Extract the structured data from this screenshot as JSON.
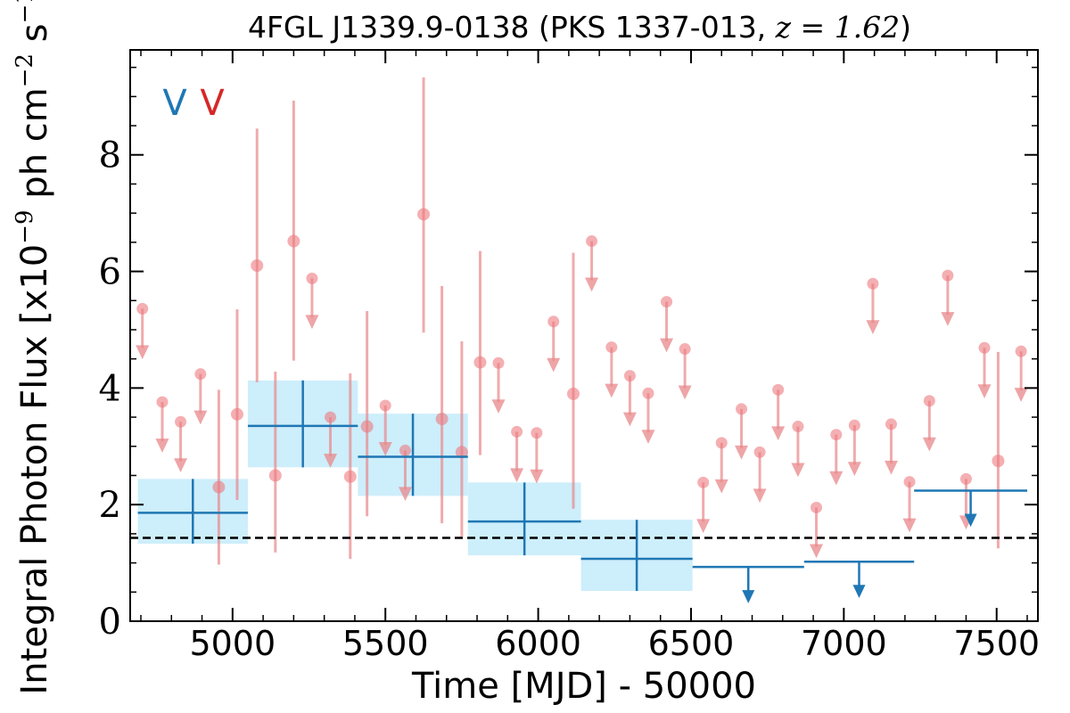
{
  "chart_data": {
    "type": "scatter",
    "title": {
      "text": "4FGL J1339.9-0138 (PKS 1337-013, ",
      "math": "z = 1.62",
      "close": ")"
    },
    "xlabel": "Time [MJD] - 50000",
    "ylabel": {
      "prefix": "Integral Photon Flux [x10",
      "exp1": "−9",
      "mid": " ph cm",
      "exp2": "−2",
      "mid2": " s",
      "exp3": "−1",
      "suffix": "]"
    },
    "xlim": [
      4665,
      7635
    ],
    "ylim": [
      0,
      9.8
    ],
    "xticks": [
      5000,
      5500,
      6000,
      6500,
      7000,
      7500
    ],
    "xtick_labels": [
      "5000",
      "5500",
      "6000",
      "6500",
      "7000",
      "7500"
    ],
    "yticks": [
      0,
      2,
      4,
      6,
      8
    ],
    "ytick_labels": [
      "0",
      "2",
      "4",
      "6",
      "8"
    ],
    "grid": false,
    "legend_markers": [
      {
        "symbol": "V",
        "color": "#1f77b4"
      },
      {
        "symbol": "V",
        "color": "#d62728"
      }
    ],
    "reference_line": {
      "y": 1.43,
      "style": "dashed",
      "color": "#000000"
    },
    "colors": {
      "long_bins": "#1f77b4",
      "long_bins_band": "#cdeefb",
      "short_bins": "#e8878a",
      "short_bins_marker": "#ed7a7e"
    },
    "long_bins": [
      {
        "x0": 4690,
        "x1": 5050,
        "y": 1.86,
        "ylo": 1.33,
        "yhi": 2.44,
        "type": "detection"
      },
      {
        "x0": 5050,
        "x1": 5410,
        "y": 3.35,
        "ylo": 2.64,
        "yhi": 4.13,
        "type": "detection"
      },
      {
        "x0": 5410,
        "x1": 5770,
        "y": 2.82,
        "ylo": 2.15,
        "yhi": 3.56,
        "type": "detection"
      },
      {
        "x0": 5770,
        "x1": 6140,
        "y": 1.71,
        "ylo": 1.13,
        "yhi": 2.38,
        "type": "detection"
      },
      {
        "x0": 6140,
        "x1": 6505,
        "y": 1.07,
        "ylo": 0.52,
        "yhi": 1.74,
        "type": "detection"
      },
      {
        "x0": 6505,
        "x1": 6870,
        "y": 0.93,
        "type": "upper_limit"
      },
      {
        "x0": 6870,
        "x1": 7230,
        "y": 1.02,
        "type": "upper_limit"
      },
      {
        "x0": 7230,
        "x1": 7600,
        "y": 2.24,
        "type": "upper_limit"
      }
    ],
    "short_bins_detections": [
      {
        "x": 4955,
        "y": 2.3,
        "ylo": 0.97,
        "yhi": 3.97
      },
      {
        "x": 5015,
        "y": 3.55,
        "ylo": 2.08,
        "yhi": 5.35
      },
      {
        "x": 5080,
        "y": 6.1,
        "ylo": 4.1,
        "yhi": 8.45
      },
      {
        "x": 5140,
        "y": 2.5,
        "ylo": 1.18,
        "yhi": 4.28
      },
      {
        "x": 5200,
        "y": 6.52,
        "ylo": 4.47,
        "yhi": 8.93
      },
      {
        "x": 5385,
        "y": 2.48,
        "ylo": 1.07,
        "yhi": 4.25
      },
      {
        "x": 5440,
        "y": 3.34,
        "ylo": 1.8,
        "yhi": 5.32
      },
      {
        "x": 5625,
        "y": 6.98,
        "ylo": 4.95,
        "yhi": 9.33
      },
      {
        "x": 5685,
        "y": 3.47,
        "ylo": 1.68,
        "yhi": 5.75
      },
      {
        "x": 5750,
        "y": 2.9,
        "ylo": 1.45,
        "yhi": 4.8
      },
      {
        "x": 5810,
        "y": 4.44,
        "ylo": 2.85,
        "yhi": 6.35
      },
      {
        "x": 6115,
        "y": 3.9,
        "ylo": 1.93,
        "yhi": 6.32
      },
      {
        "x": 7505,
        "y": 2.75,
        "ylo": 1.25,
        "yhi": 4.62
      }
    ],
    "short_bins_upper_limits": [
      {
        "x": 4705,
        "y": 5.36
      },
      {
        "x": 4770,
        "y": 3.76
      },
      {
        "x": 4830,
        "y": 3.42
      },
      {
        "x": 4895,
        "y": 4.24
      },
      {
        "x": 5320,
        "y": 3.5
      },
      {
        "x": 5260,
        "y": 5.88
      },
      {
        "x": 5500,
        "y": 3.7
      },
      {
        "x": 5565,
        "y": 2.93
      },
      {
        "x": 5870,
        "y": 4.43
      },
      {
        "x": 5930,
        "y": 3.25
      },
      {
        "x": 5995,
        "y": 3.23
      },
      {
        "x": 6050,
        "y": 5.14
      },
      {
        "x": 6175,
        "y": 6.52
      },
      {
        "x": 6240,
        "y": 4.7
      },
      {
        "x": 6300,
        "y": 4.21
      },
      {
        "x": 6360,
        "y": 3.91
      },
      {
        "x": 6420,
        "y": 5.48
      },
      {
        "x": 6480,
        "y": 4.67
      },
      {
        "x": 6540,
        "y": 2.38
      },
      {
        "x": 6600,
        "y": 3.06
      },
      {
        "x": 6665,
        "y": 3.64
      },
      {
        "x": 6725,
        "y": 2.9
      },
      {
        "x": 6785,
        "y": 3.97
      },
      {
        "x": 6850,
        "y": 3.34
      },
      {
        "x": 6910,
        "y": 1.95
      },
      {
        "x": 6975,
        "y": 3.2
      },
      {
        "x": 7035,
        "y": 3.36
      },
      {
        "x": 7095,
        "y": 5.79
      },
      {
        "x": 7155,
        "y": 3.38
      },
      {
        "x": 7215,
        "y": 2.39
      },
      {
        "x": 7280,
        "y": 3.78
      },
      {
        "x": 7340,
        "y": 5.93
      },
      {
        "x": 7400,
        "y": 2.44
      },
      {
        "x": 7460,
        "y": 4.69
      },
      {
        "x": 7580,
        "y": 4.63
      }
    ]
  }
}
